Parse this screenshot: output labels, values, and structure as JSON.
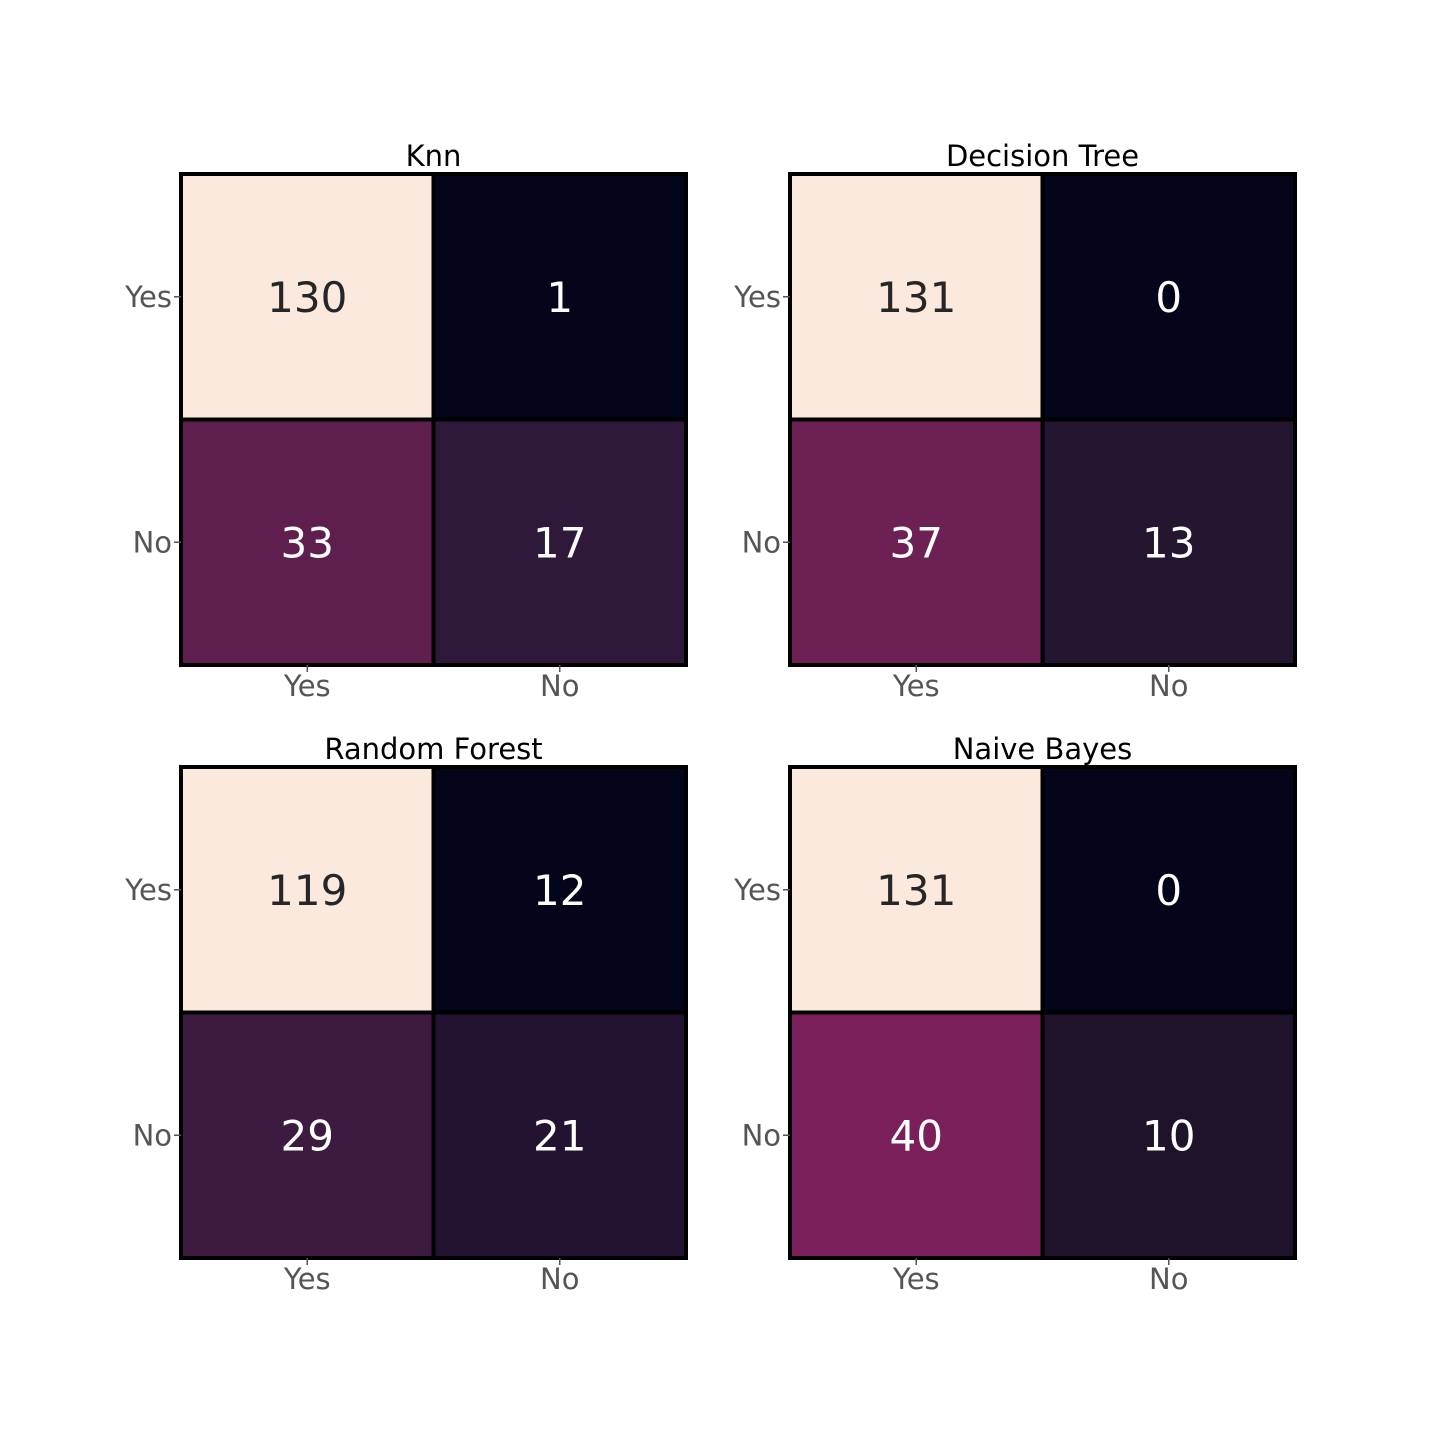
{
  "chart_data": [
    {
      "type": "heatmap",
      "title": "Knn",
      "row_labels": [
        "Yes",
        "No"
      ],
      "col_labels": [
        "Yes",
        "No"
      ],
      "values": [
        [
          130,
          1
        ],
        [
          33,
          17
        ]
      ],
      "cell_colors": [
        [
          "#fae9dc",
          "#03051a"
        ],
        [
          "#5e1f4e",
          "#2f193a"
        ]
      ],
      "text_colors": [
        [
          "#262626",
          "#ffffff"
        ],
        [
          "#ffffff",
          "#ffffff"
        ]
      ]
    },
    {
      "type": "heatmap",
      "title": "Decision Tree",
      "row_labels": [
        "Yes",
        "No"
      ],
      "col_labels": [
        "Yes",
        "No"
      ],
      "values": [
        [
          131,
          0
        ],
        [
          37,
          13
        ]
      ],
      "cell_colors": [
        [
          "#fae9dc",
          "#03051a"
        ],
        [
          "#6c2054",
          "#241531"
        ]
      ],
      "text_colors": [
        [
          "#262626",
          "#ffffff"
        ],
        [
          "#ffffff",
          "#ffffff"
        ]
      ]
    },
    {
      "type": "heatmap",
      "title": "Random Forest",
      "row_labels": [
        "Yes",
        "No"
      ],
      "col_labels": [
        "Yes",
        "No"
      ],
      "values": [
        [
          119,
          12
        ],
        [
          29,
          21
        ]
      ],
      "cell_colors": [
        [
          "#fae9dc",
          "#03051a"
        ],
        [
          "#3d1b41",
          "#221430"
        ]
      ],
      "text_colors": [
        [
          "#262626",
          "#ffffff"
        ],
        [
          "#ffffff",
          "#ffffff"
        ]
      ]
    },
    {
      "type": "heatmap",
      "title": "Naive Bayes",
      "row_labels": [
        "Yes",
        "No"
      ],
      "col_labels": [
        "Yes",
        "No"
      ],
      "values": [
        [
          131,
          0
        ],
        [
          40,
          10
        ]
      ],
      "cell_colors": [
        [
          "#fae9dc",
          "#03051a"
        ],
        [
          "#7a1f59",
          "#1f132c"
        ]
      ],
      "text_colors": [
        [
          "#262626",
          "#ffffff"
        ],
        [
          "#ffffff",
          "#ffffff"
        ]
      ]
    }
  ]
}
